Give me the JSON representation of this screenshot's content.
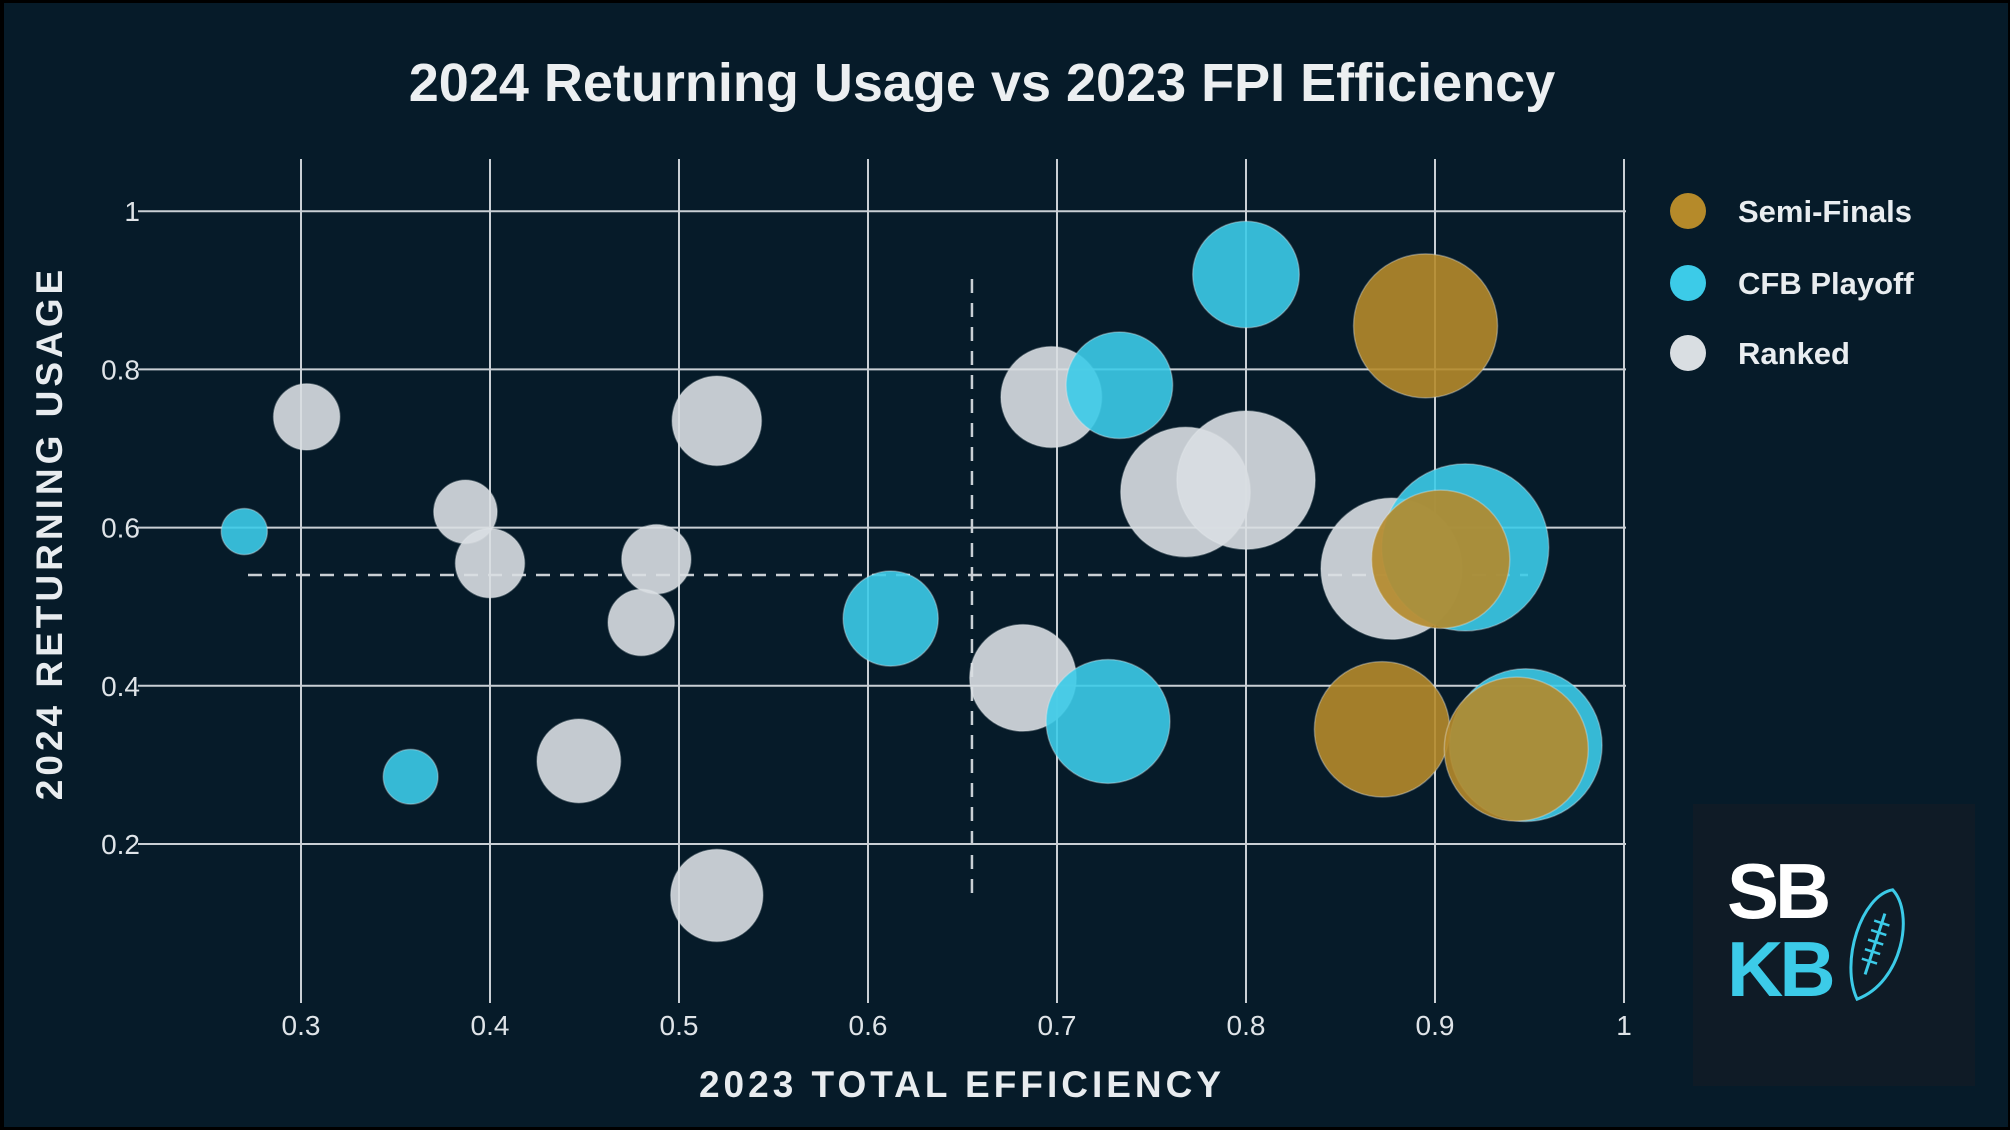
{
  "chart_data": {
    "type": "scatter",
    "title": "2024 Returning Usage vs 2023 FPI Efficiency",
    "xlabel": "2023 TOTAL EFFICIENCY",
    "ylabel": "2024 RETURNING USAGE",
    "xlim": [
      0.2,
      1.0
    ],
    "ylim": [
      0.0,
      1.06
    ],
    "x_ticks": [
      "0.3",
      "0.4",
      "0.5",
      "0.6",
      "0.7",
      "0.8",
      "0.9",
      "1"
    ],
    "y_ticks": [
      "0.2",
      "0.4",
      "0.6",
      "0.8",
      "1"
    ],
    "grid": true,
    "legend_position": "top-right",
    "reference_lines": {
      "x": 0.655,
      "y": 0.54
    },
    "series": [
      {
        "name": "Semi-Finals",
        "color": "#b58a2a",
        "points": [
          {
            "x": 0.895,
            "y": 0.855,
            "size": 1.0
          },
          {
            "x": 0.872,
            "y": 0.345,
            "size": 0.94
          },
          {
            "x": 0.943,
            "y": 0.32,
            "size": 1.0
          },
          {
            "x": 0.903,
            "y": 0.56,
            "size": 0.96
          }
        ]
      },
      {
        "name": "CFB Playoff",
        "color": "#3ccbe8",
        "points": [
          {
            "x": 0.8,
            "y": 0.92,
            "size": 0.74
          },
          {
            "x": 0.733,
            "y": 0.78,
            "size": 0.74
          },
          {
            "x": 0.916,
            "y": 0.575,
            "size": 1.16
          },
          {
            "x": 0.948,
            "y": 0.325,
            "size": 1.06
          },
          {
            "x": 0.612,
            "y": 0.485,
            "size": 0.66
          },
          {
            "x": 0.727,
            "y": 0.355,
            "size": 0.86
          },
          {
            "x": 0.27,
            "y": 0.595,
            "size": 0.32
          },
          {
            "x": 0.358,
            "y": 0.285,
            "size": 0.38
          }
        ]
      },
      {
        "name": "Ranked",
        "color": "#d9dee2",
        "points": [
          {
            "x": 0.303,
            "y": 0.74,
            "size": 0.46
          },
          {
            "x": 0.52,
            "y": 0.735,
            "size": 0.62
          },
          {
            "x": 0.387,
            "y": 0.62,
            "size": 0.44
          },
          {
            "x": 0.4,
            "y": 0.555,
            "size": 0.48
          },
          {
            "x": 0.488,
            "y": 0.56,
            "size": 0.48
          },
          {
            "x": 0.48,
            "y": 0.48,
            "size": 0.46
          },
          {
            "x": 0.447,
            "y": 0.305,
            "size": 0.58
          },
          {
            "x": 0.52,
            "y": 0.135,
            "size": 0.64
          },
          {
            "x": 0.697,
            "y": 0.765,
            "size": 0.7
          },
          {
            "x": 0.682,
            "y": 0.41,
            "size": 0.74
          },
          {
            "x": 0.768,
            "y": 0.645,
            "size": 0.9
          },
          {
            "x": 0.8,
            "y": 0.66,
            "size": 0.96
          },
          {
            "x": 0.877,
            "y": 0.548,
            "size": 0.98
          }
        ]
      }
    ]
  },
  "logo": {
    "line1": "SB",
    "line2": "KB",
    "color_top": "#ffffff",
    "color_bottom": "#3ccbe8"
  }
}
